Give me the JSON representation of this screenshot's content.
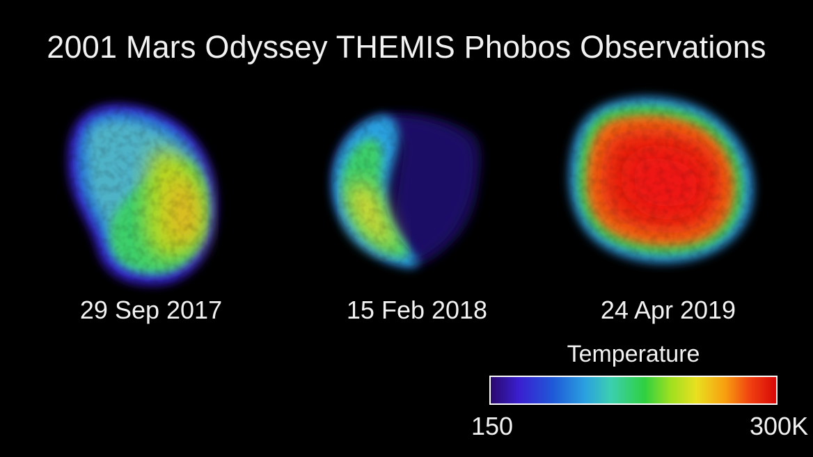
{
  "title": "2001 Mars Odyssey THEMIS Phobos Observations",
  "observations": [
    {
      "date": "29 Sep 2017"
    },
    {
      "date": "15 Feb 2018"
    },
    {
      "date": "24 Apr 2019"
    }
  ],
  "legend": {
    "title": "Temperature",
    "min_label": "150",
    "max_label": "300K"
  },
  "colors": {
    "background": "#000000",
    "text": "#f2f2f2",
    "cold": "#3a1fd0",
    "cool": "#2aa0e0",
    "mid": "#2fd040",
    "warm": "#e8e020",
    "hot": "#d80808"
  }
}
